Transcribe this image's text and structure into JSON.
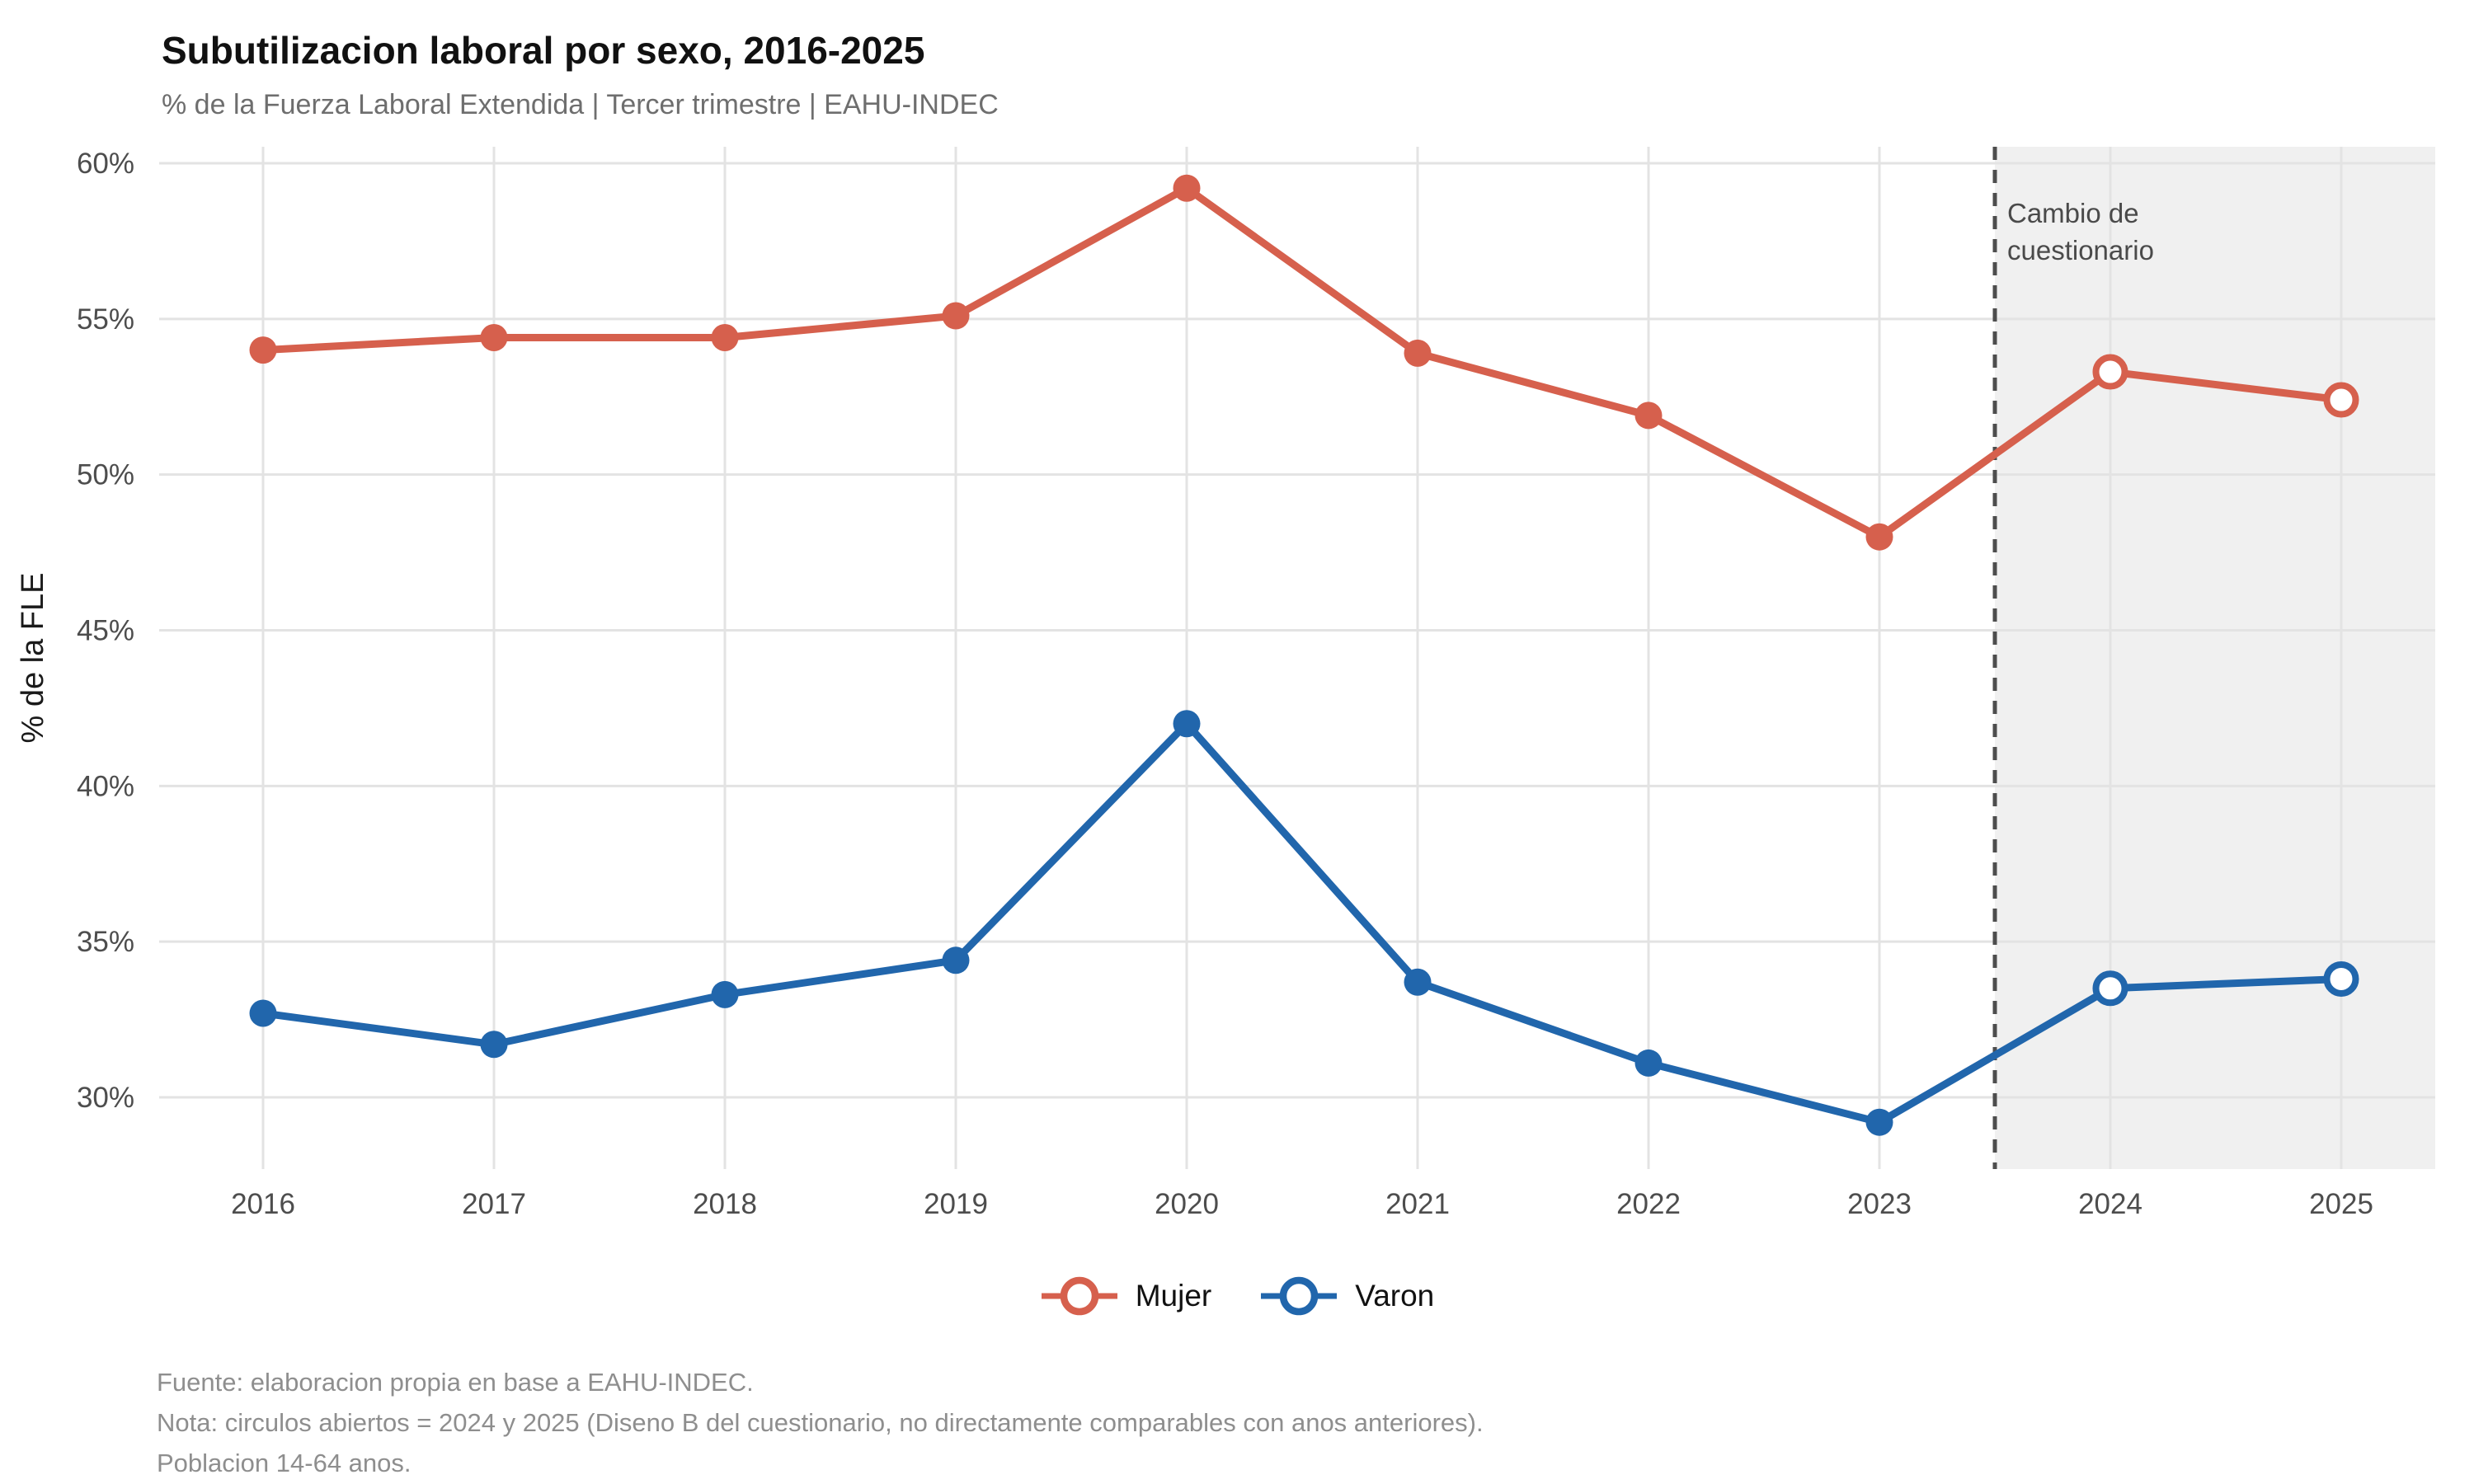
{
  "header": {
    "title": "Subutilizacion laboral por sexo, 2016-2025",
    "subtitle": "% de la Fuerza Laboral Extendida | Tercer trimestre | EAHU-INDEC"
  },
  "chart_data": {
    "type": "line",
    "title": "Subutilizacion laboral por sexo, 2016-2025",
    "subtitle": "% de la Fuerza Laboral Extendida | Tercer trimestre | EAHU-INDEC",
    "xlabel": "",
    "ylabel": "% de la FLE",
    "x": [
      2016,
      2017,
      2018,
      2019,
      2020,
      2021,
      2022,
      2023,
      2024,
      2025
    ],
    "series": [
      {
        "name": "Mujer",
        "color": "#d6604d",
        "values": [
          54.0,
          54.4,
          54.4,
          55.1,
          59.2,
          53.9,
          51.9,
          48.0,
          53.3,
          52.4
        ]
      },
      {
        "name": "Varon",
        "color": "#2166ac",
        "values": [
          32.7,
          31.7,
          33.3,
          34.4,
          42.0,
          33.7,
          31.1,
          29.2,
          33.5,
          33.8
        ]
      }
    ],
    "yticks": [
      30,
      35,
      40,
      45,
      50,
      55,
      60
    ],
    "ytick_suffix": "%",
    "ylim": [
      27.7,
      60.5
    ],
    "grid": true,
    "legend_position": "bottom",
    "open_marker_years": [
      2024,
      2025
    ],
    "dashed_line_x": 2023.5,
    "shaded_region": {
      "from_x": 2023.5,
      "to_end": true,
      "color": "#f0f0f0",
      "label": "Cambio de cuestionario"
    },
    "colors": {
      "grid": "#e3e3e3",
      "dashed_line": "#4d4d4d",
      "tick_text": "#4d4d4d"
    }
  },
  "annotation": {
    "line1": "Cambio de",
    "line2": "cuestionario"
  },
  "footer": {
    "lines": [
      "Fuente: elaboracion propia en base a EAHU-INDEC.",
      "Nota: circulos abiertos = 2024 y 2025 (Diseno B del cuestionario, no directamente comparables con anos anteriores).",
      "Poblacion 14-64 anos."
    ]
  }
}
